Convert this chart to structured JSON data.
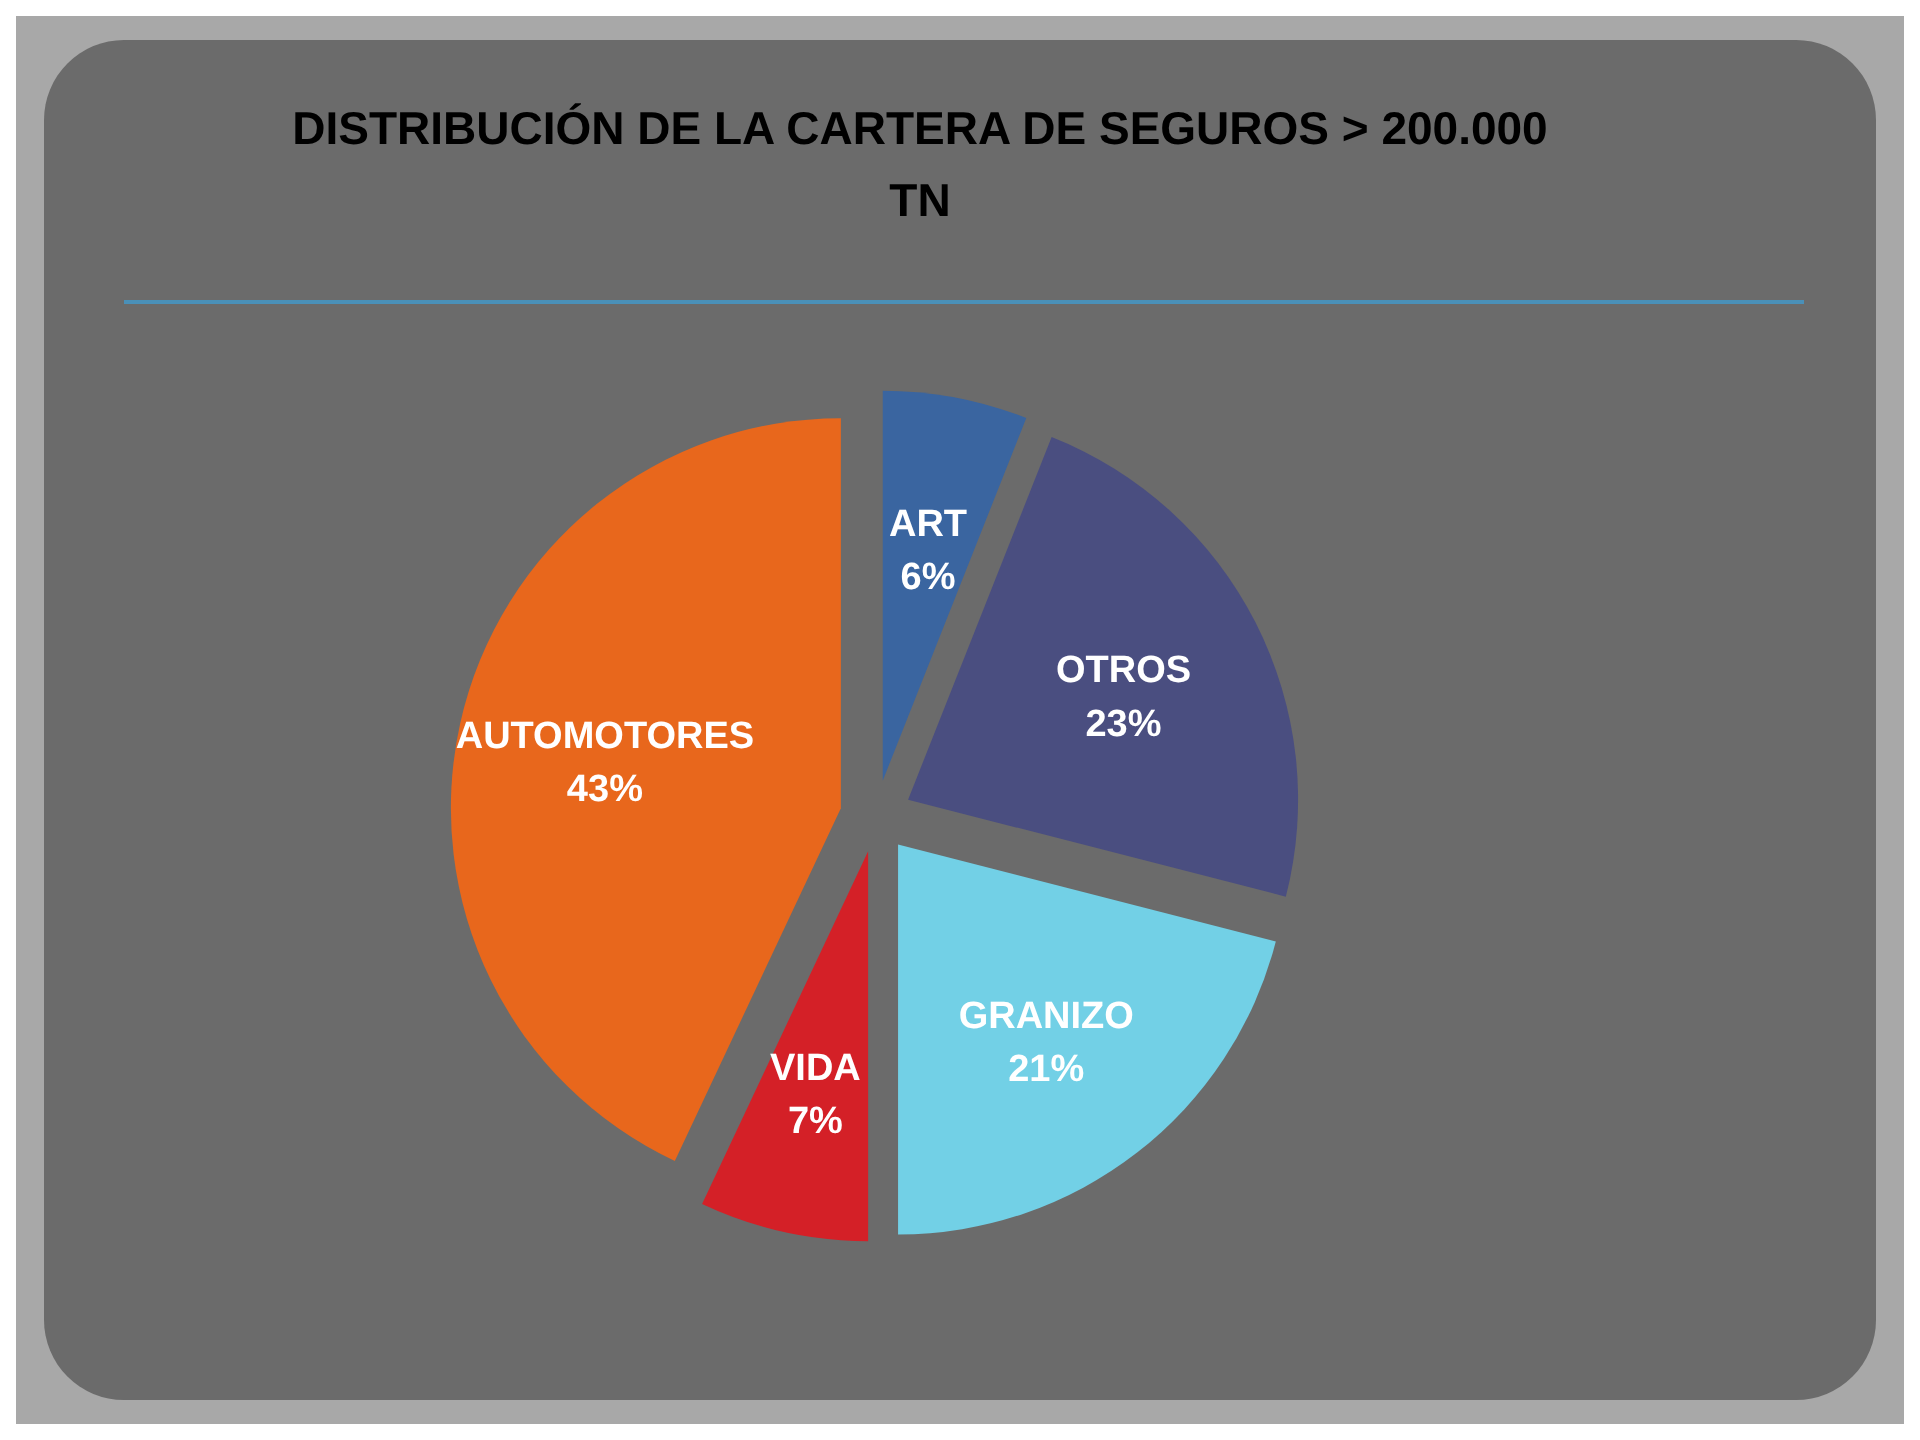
{
  "chart_data": {
    "type": "pie",
    "title": "DISTRIBUCIÓN DE LA CARTERA  DE SEGUROS > 200.000 TN",
    "categories": [
      "ART",
      "OTROS",
      "GRANIZO",
      "VIDA",
      "AUTOMOTORES"
    ],
    "values": [
      6,
      23,
      21,
      7,
      43
    ],
    "value_labels": [
      "6%",
      "23%",
      "21%",
      "7%",
      "43%"
    ],
    "colors": [
      "#3a65a0",
      "#4a4e80",
      "#72d0e6",
      "#d42027",
      "#e8671c"
    ]
  }
}
